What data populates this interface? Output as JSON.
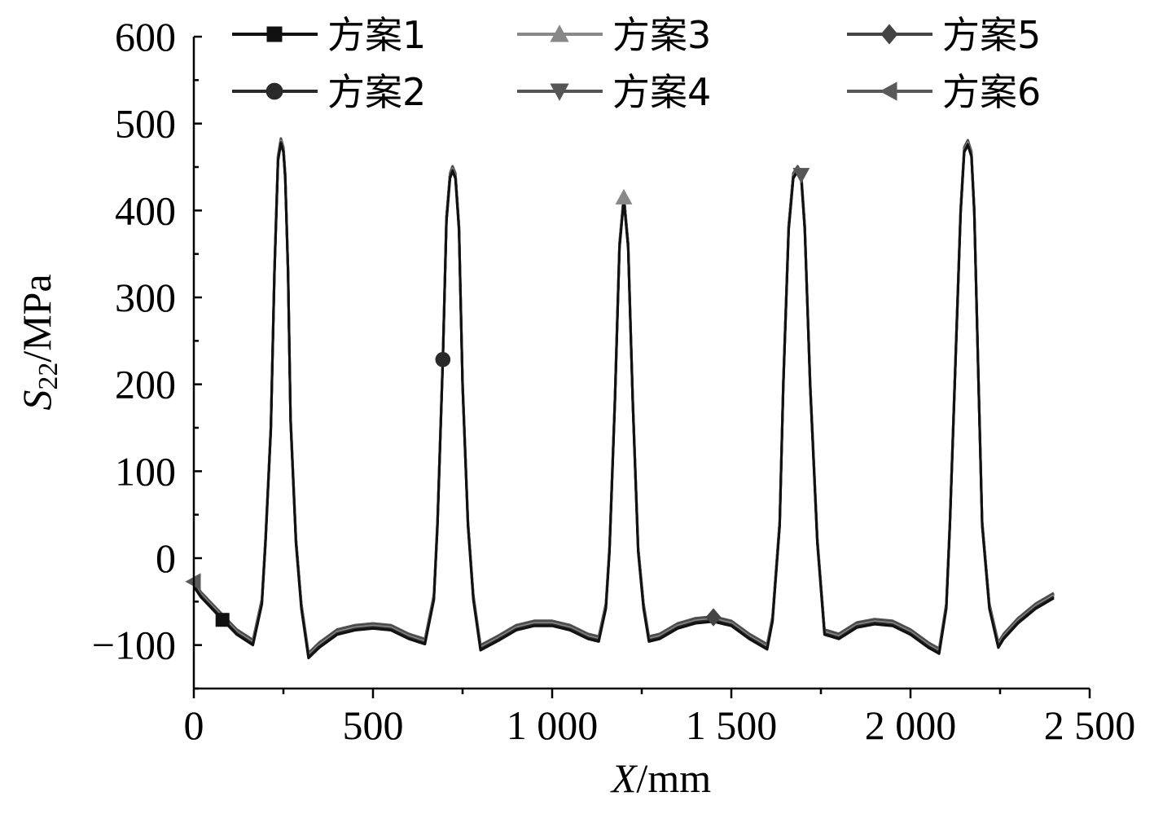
{
  "chart_data": {
    "type": "line",
    "xlabel_main": "X",
    "xlabel_unit": "/mm",
    "ylabel_main": "S",
    "ylabel_sub": "22",
    "ylabel_unit": "/MPa",
    "xlim": [
      0,
      2500
    ],
    "ylim": [
      -150,
      600
    ],
    "x_ticks": [
      0,
      500,
      1000,
      1500,
      2000,
      2500
    ],
    "x_tick_labels": [
      "0",
      "500",
      "1 000",
      "1 500",
      "2 000",
      "2 500"
    ],
    "y_ticks": [
      -100,
      0,
      100,
      200,
      300,
      400,
      500,
      600
    ],
    "y_tick_labels": [
      "−100",
      "0",
      "100",
      "200",
      "300",
      "400",
      "500",
      "600"
    ],
    "x": [
      0,
      20,
      80,
      120,
      165,
      190,
      200,
      215,
      225,
      235,
      243,
      250,
      255,
      263,
      270,
      285,
      300,
      320,
      350,
      400,
      450,
      500,
      550,
      600,
      645,
      670,
      680,
      695,
      705,
      715,
      722,
      730,
      740,
      750,
      765,
      780,
      800,
      850,
      900,
      950,
      1000,
      1050,
      1100,
      1130,
      1150,
      1160,
      1175,
      1188,
      1200,
      1212,
      1225,
      1240,
      1255,
      1270,
      1300,
      1350,
      1400,
      1450,
      1500,
      1550,
      1600,
      1615,
      1635,
      1645,
      1660,
      1673,
      1685,
      1695,
      1705,
      1720,
      1740,
      1760,
      1800,
      1850,
      1900,
      1950,
      2000,
      2050,
      2080,
      2100,
      2110,
      2125,
      2140,
      2150,
      2160,
      2170,
      2178,
      2190,
      2200,
      2220,
      2245,
      2260,
      2300,
      2350,
      2400
    ],
    "series": [
      {
        "name": "方案1",
        "color": "#111111",
        "marker": "square",
        "marker_x": 100
      },
      {
        "name": "方案2",
        "color": "#2a2a2a",
        "marker": "circle",
        "marker_x": 700
      },
      {
        "name": "方案3",
        "color": "#888888",
        "marker": "triangle-up",
        "marker_x": 1200
      },
      {
        "name": "方案4",
        "color": "#555555",
        "marker": "triangle-down",
        "marker_x": 1700
      },
      {
        "name": "方案5",
        "color": "#444444",
        "marker": "diamond",
        "marker_x": 1450
      },
      {
        "name": "方案6",
        "color": "#5a5a5a",
        "marker": "triangle-left",
        "marker_x": 10
      }
    ],
    "base_y": [
      -30,
      -42,
      -68,
      -85,
      -97,
      -50,
      20,
      150,
      330,
      460,
      480,
      470,
      440,
      330,
      160,
      20,
      -55,
      -112,
      -100,
      -85,
      -80,
      -78,
      -80,
      -90,
      -96,
      -45,
      40,
      230,
      390,
      440,
      448,
      440,
      380,
      200,
      40,
      -45,
      -103,
      -92,
      -80,
      -75,
      -75,
      -80,
      -90,
      -93,
      -55,
      10,
      180,
      360,
      415,
      360,
      180,
      10,
      -55,
      -93,
      -90,
      -78,
      -72,
      -70,
      -75,
      -90,
      -102,
      -70,
      40,
      200,
      380,
      440,
      448,
      440,
      380,
      200,
      20,
      -85,
      -90,
      -77,
      -73,
      -75,
      -85,
      -100,
      -107,
      -55,
      40,
      220,
      400,
      470,
      478,
      465,
      400,
      200,
      40,
      -55,
      -100,
      -90,
      -72,
      -55,
      -43
    ],
    "legend": {
      "placement": "top",
      "columns": 3
    }
  }
}
